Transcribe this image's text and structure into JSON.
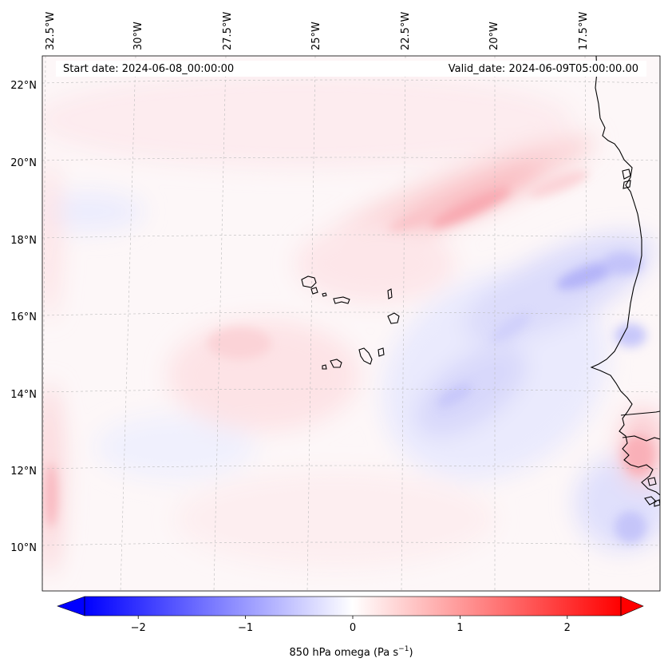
{
  "map": {
    "start_date_label": "Start date: 2024-06-08_00:00:00",
    "valid_date_label": "Valid_date: 2024-06-09T05:00:00.00",
    "lon_labels": [
      "32.5°W",
      "30°W",
      "27.5°W",
      "25°W",
      "22.5°W",
      "20°W",
      "17.5°W"
    ],
    "lat_labels": [
      "22°N",
      "20°N",
      "18°N",
      "16°N",
      "14°N",
      "12°N",
      "10°N"
    ],
    "field": "850 hPa omega",
    "projection_extent": {
      "lon_min": -33.0,
      "lon_max": -15.5,
      "lat_min": 8.8,
      "lat_max": 22.8
    }
  },
  "colorbar": {
    "label": "850 hPa omega (Pa s",
    "label_exp": "−1",
    "label_close": ")",
    "ticks": [
      "−2",
      "−1",
      "0",
      "1",
      "2"
    ],
    "tick_values": [
      -2,
      -1,
      0,
      1,
      2
    ],
    "range": [
      -2.5,
      2.5
    ],
    "extend": "both",
    "colormap": "bwr",
    "low_color": "#0000ff",
    "mid_color": "#ffffff",
    "high_color": "#ff0000"
  }
}
